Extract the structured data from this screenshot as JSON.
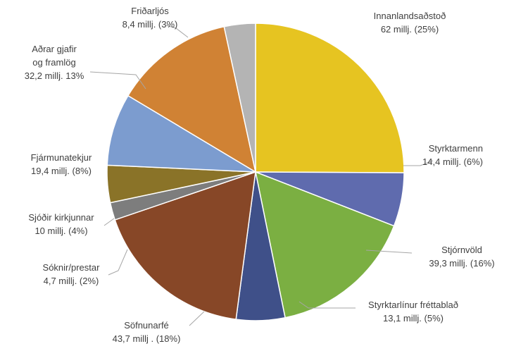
{
  "chart_data": {
    "type": "pie",
    "title": "",
    "legend": "none",
    "slices": [
      {
        "line1": "Innanlandsaðstoð",
        "line2": "62 millj. (25%)",
        "value": 62,
        "percent": 25,
        "color": "#E6C421"
      },
      {
        "line1": "Styrktarmenn",
        "line2": "14,4 millj. (6%)",
        "value": 14.4,
        "percent": 6,
        "color": "#5F6BAE"
      },
      {
        "line1": "Stjórnvöld",
        "line2": "39,3 millj. (16%)",
        "value": 39.3,
        "percent": 16,
        "color": "#7BAF42"
      },
      {
        "line1": "Styrktarlínur fréttablað",
        "line2": "13,1 millj. (5%)",
        "value": 13.1,
        "percent": 5,
        "color": "#3F5089"
      },
      {
        "line1": "Söfnunarfé",
        "line2": "43,7 millj . (18%)",
        "value": 43.7,
        "percent": 18,
        "color": "#874727"
      },
      {
        "line1": "Sóknir/prestar",
        "line2": "4,7 millj. (2%)",
        "value": 4.7,
        "percent": 2,
        "color": "#7D7D7D"
      },
      {
        "line1": "Sjóðir kirkjunnar",
        "line2": "10 millj. (4%)",
        "value": 10,
        "percent": 4,
        "color": "#8A7328"
      },
      {
        "line1": "Fjármunatekjur",
        "line2": "19,4 millj. (8%)",
        "value": 19.4,
        "percent": 8,
        "color": "#7C9CCF"
      },
      {
        "line1": "Aðrar gjafir",
        "line2": "og framlög",
        "line3": "32,2 millj. 13%",
        "value": 32.2,
        "percent": 13,
        "color": "#D08234"
      },
      {
        "line1": "Friðarljós",
        "line2": "8,4 millj. (3%)",
        "value": 8.4,
        "percent": 3,
        "color": "#B4B4B4"
      }
    ]
  }
}
